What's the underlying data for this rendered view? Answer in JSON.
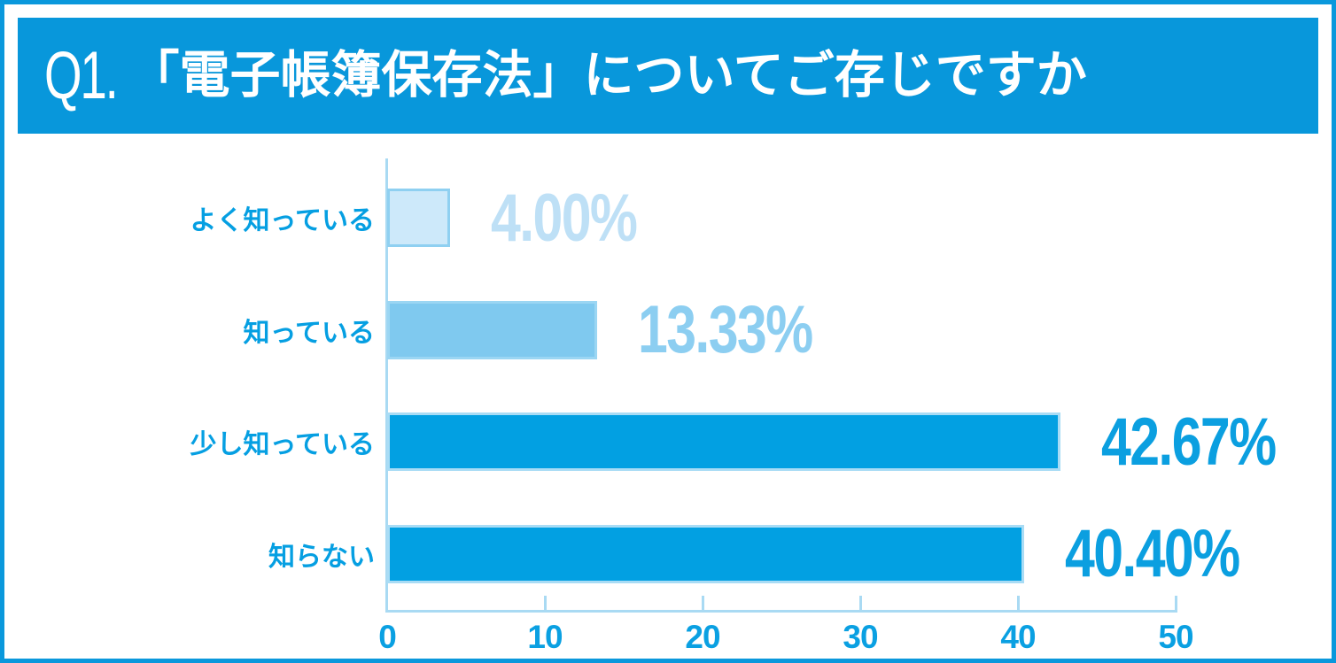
{
  "frame": {
    "border_color": "#0a98dc",
    "background": "#ffffff"
  },
  "header": {
    "question_number": "Q1.",
    "title": "「電子帳簿保存法」についてご存じですか",
    "bg_color": "#0897db",
    "text_color": "#ffffff"
  },
  "chart_data": {
    "type": "bar",
    "orientation": "horizontal",
    "title": "",
    "xlabel": "",
    "ylabel": "",
    "xlim": [
      0,
      50
    ],
    "x_ticks": [
      "0",
      "10",
      "20",
      "30",
      "40",
      "50"
    ],
    "grid": false,
    "legend": false,
    "categories": [
      "よく知っている",
      "知っている",
      "少し知っている",
      "知らない"
    ],
    "values": [
      4.0,
      13.33,
      42.67,
      40.4
    ],
    "value_labels": [
      "4.00%",
      "13.33%",
      "42.67%",
      "40.40%"
    ],
    "bar_fill_colors": [
      "#cde9fa",
      "#7fc9ef",
      "#02a0e2",
      "#02a0e2"
    ],
    "bar_border_colors": [
      "#8fd0f1",
      "#9bd6f3",
      "#a9dcf5",
      "#a9dcf5"
    ],
    "value_label_colors": [
      "#bee0f6",
      "#8ccef1",
      "#0b9fe0",
      "#0b9fe0"
    ],
    "category_label_color": "#059fe2",
    "axis_color": "#a9daf3",
    "tick_label_color": "#0aa0e2"
  }
}
